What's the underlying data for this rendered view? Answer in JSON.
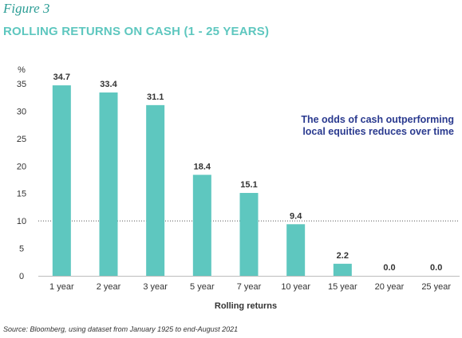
{
  "figure_label": "Figure 3",
  "source_note": "Source: Bloomberg, using dataset from January 1925 to end-August 2021",
  "colors": {
    "bar": "#5ec7bf",
    "note": "#2a3a8f",
    "title": "#5ec7bf",
    "figure_label": "#2b9d95"
  },
  "chart_data": {
    "type": "bar",
    "title": "ROLLING RETURNS ON CASH (1 - 25 YEARS)",
    "xlabel": "Rolling returns",
    "ylabel": "%",
    "categories": [
      "1 year",
      "2 year",
      "3 year",
      "5 year",
      "7 year",
      "10 year",
      "15 year",
      "20 year",
      "25 year"
    ],
    "values": [
      34.7,
      33.4,
      31.1,
      18.4,
      15.1,
      9.4,
      2.2,
      0.0,
      0.0
    ],
    "value_labels": [
      "34.7",
      "33.4",
      "31.1",
      "18.4",
      "15.1",
      "9.4",
      "2.2",
      "0.0",
      "0.0"
    ],
    "yticks": [
      "0",
      "5",
      "10",
      "15",
      "20",
      "25",
      "30",
      "35"
    ],
    "ylim": [
      0,
      35
    ],
    "reference_line": 10,
    "annotation": [
      "The odds of cash outperforming",
      "local equities reduces over time"
    ],
    "grid": false,
    "legend": "none"
  }
}
